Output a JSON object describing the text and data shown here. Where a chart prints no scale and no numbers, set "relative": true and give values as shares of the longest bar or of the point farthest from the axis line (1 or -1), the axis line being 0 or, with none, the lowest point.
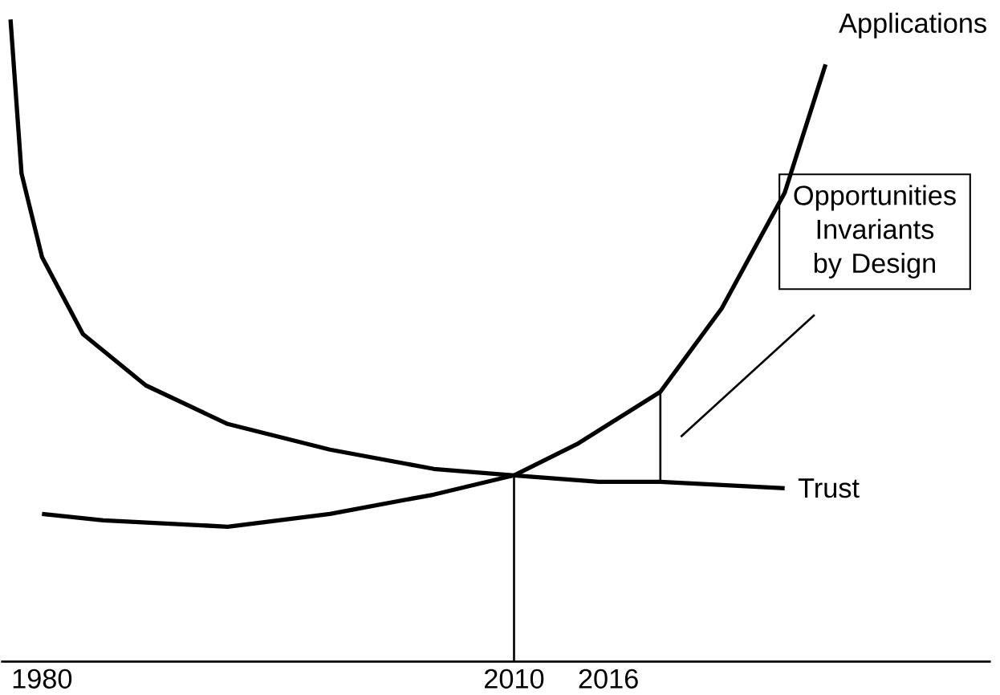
{
  "chart_data": {
    "type": "line",
    "relative": true,
    "xlim": [
      1977.4,
      2040.3
    ],
    "xticks": [
      1980,
      2010,
      2016
    ],
    "grid": false,
    "legend": false,
    "marker": "none",
    "line_style": "solid",
    "series": [
      {
        "name": "Applications",
        "color": "#000000",
        "x": [
          1980,
          1983.9,
          1991.8,
          1998.3,
          2004.9,
          2010,
          2014.1,
          2019.3,
          2023.2,
          2027.2,
          2029.8
        ],
        "values": [
          0.23,
          0.22,
          0.21,
          0.23,
          0.26,
          0.29,
          0.34,
          0.42,
          0.55,
          0.73,
          0.93
        ]
      },
      {
        "name": "Trust",
        "color": "#000000",
        "x": [
          1978.0,
          1978.7,
          1980,
          1982.6,
          1986.6,
          1991.8,
          1998.3,
          2004.9,
          2010,
          2015.4,
          2019.3,
          2027.2
        ],
        "values": [
          1.0,
          0.76,
          0.63,
          0.51,
          0.43,
          0.37,
          0.33,
          0.3,
          0.29,
          0.28,
          0.28,
          0.27
        ]
      },
      {
        "color": "#000000",
        "x": [
          2010,
          2010
        ],
        "values": [
          0,
          0.29
        ]
      },
      {
        "color": "#000000",
        "x": [
          2019.3,
          2019.3
        ],
        "values": [
          0.28,
          0.42
        ]
      },
      {
        "color": "#000000",
        "x": [
          2020.6,
          2029.1
        ],
        "values": [
          0.35,
          0.54
        ]
      }
    ],
    "annotations": [
      "Opportunities Invariants by Design"
    ]
  }
}
